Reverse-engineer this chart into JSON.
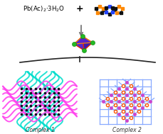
{
  "bg_color": "#ffffff",
  "formula_text": "Pb(Ac)$_2$$\\cdot$3H$_2$O",
  "complex1_label": "Complex 1",
  "complex2_label": "Complex 2",
  "ligand_orange": "#ff8800",
  "ligand_blue": "#2244ff",
  "ligand_black": "#111111",
  "complex2_line_color": "#88aaff",
  "complex2_node_magenta": "#cc44cc",
  "complex2_node_orange": "#ff5500",
  "complex1_magenta": "#ff44ee",
  "complex1_cyan": "#00ddcc",
  "cluster_purple": "#5522cc",
  "cluster_purple2": "#3311aa",
  "cluster_green": "#22bb22",
  "cluster_edge": "#ff8800",
  "cluster_red_edge": "#ee2200",
  "arrow_color": "#777777",
  "brace_color": "#222222",
  "text_color": "#333333"
}
